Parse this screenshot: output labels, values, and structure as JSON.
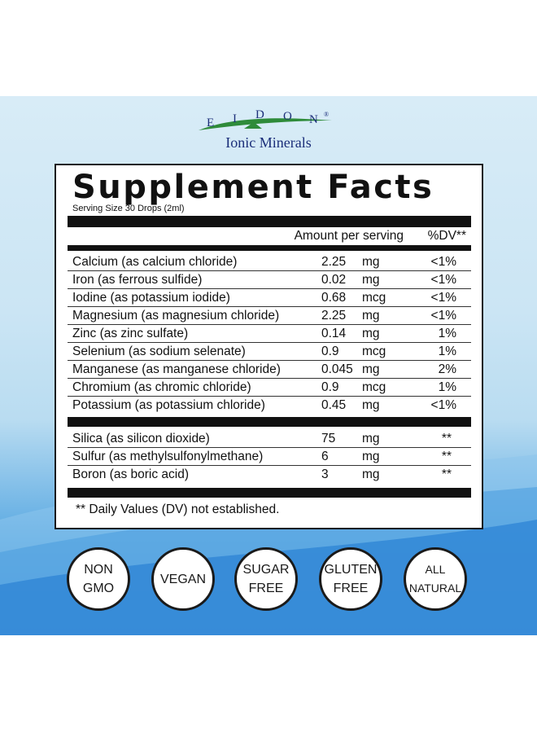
{
  "brand": {
    "letters": [
      "E",
      "I",
      "D",
      "O",
      "N"
    ],
    "registered": "®",
    "subtitle": "Ionic Minerals"
  },
  "facts": {
    "title": "Supplement Facts",
    "serving": "Serving Size 30 Drops (2ml)",
    "amount_header": "Amount per serving",
    "dv_header": "%DV**",
    "minerals": [
      {
        "name": "Calcium (as calcium chloride)",
        "qty": "2.25",
        "unit": "mg",
        "dv": "<1%"
      },
      {
        "name": "Iron (as ferrous sulfide)",
        "qty": "0.02",
        "unit": "mg",
        "dv": "<1%"
      },
      {
        "name": "Iodine (as potassium iodide)",
        "qty": "0.68",
        "unit": "mcg",
        "dv": "<1%"
      },
      {
        "name": "Magnesium (as magnesium chloride)",
        "qty": "2.25",
        "unit": "mg",
        "dv": "<1%"
      },
      {
        "name": "Zinc (as zinc sulfate)",
        "qty": "0.14",
        "unit": "mg",
        "dv": "1%"
      },
      {
        "name": "Selenium (as sodium selenate)",
        "qty": "0.9",
        "unit": "mcg",
        "dv": "1%"
      },
      {
        "name": "Manganese (as manganese chloride)",
        "qty": "0.045",
        "unit": "mg",
        "dv": "2%"
      },
      {
        "name": "Chromium (as chromic chloride)",
        "qty": "0.9",
        "unit": "mcg",
        "dv": "1%"
      },
      {
        "name": "Potassium (as potassium chloride)",
        "qty": "0.45",
        "unit": "mg",
        "dv": "<1%"
      }
    ],
    "others": [
      {
        "name": "Silica (as silicon dioxide)",
        "qty": "75",
        "unit": "mg",
        "dv": "**"
      },
      {
        "name": "Sulfur (as methylsulfonylmethane)",
        "qty": "6",
        "unit": "mg",
        "dv": "**"
      },
      {
        "name": "Boron (as boric acid)",
        "qty": "3",
        "unit": "mg",
        "dv": "**"
      }
    ],
    "footnote": "** Daily Values (DV) not established."
  },
  "badges": [
    {
      "line1": "NON",
      "line2": "GMO"
    },
    {
      "line1": "VEGAN",
      "line2": ""
    },
    {
      "line1": "SUGAR",
      "line2": "FREE"
    },
    {
      "line1": "GLUTEN",
      "line2": "FREE"
    },
    {
      "line1": "ALL",
      "line2": "NATURAL"
    }
  ],
  "colors": {
    "brand_navy": "#1c2f7a",
    "brand_green": "#2e8b3a",
    "background_blue": "#2f86d6"
  }
}
